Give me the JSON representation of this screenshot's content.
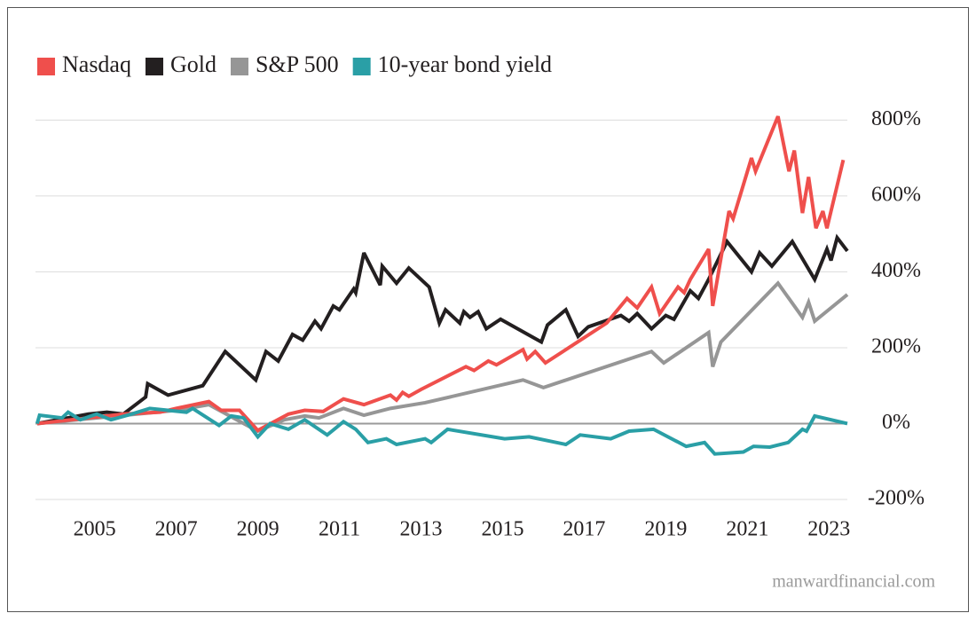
{
  "chart_data": {
    "type": "line",
    "legend": "top-left",
    "grid": true,
    "xlim": [
      2003.55,
      2023.45
    ],
    "xticks": [
      2005,
      2007,
      2009,
      2011,
      2013,
      2015,
      2017,
      2019,
      2021,
      2023
    ],
    "ylim": [
      -200,
      850
    ],
    "yticks": [
      {
        "value": -200,
        "label": "-200%"
      },
      {
        "value": 0,
        "label": "0%"
      },
      {
        "value": 200,
        "label": "200%"
      },
      {
        "value": 400,
        "label": "400%"
      },
      {
        "value": 600,
        "label": "600%"
      },
      {
        "value": 800,
        "label": "800%"
      }
    ],
    "source": "manwardfinancial.com",
    "series": [
      {
        "name": "Nasdaq",
        "color": "#ef4f4c",
        "x": [
          2003.59,
          2004.85,
          2005.7,
          2006.6,
          2007.0,
          2007.8,
          2008.1,
          2008.55,
          2009.0,
          2009.75,
          2010.15,
          2010.6,
          2011.1,
          2011.6,
          2012.25,
          2012.4,
          2012.55,
          2012.7,
          2013.0,
          2014.1,
          2014.3,
          2014.65,
          2014.85,
          2015.5,
          2015.6,
          2015.8,
          2016.05,
          2017.55,
          2018.05,
          2018.3,
          2018.65,
          2018.85,
          2019.3,
          2019.45,
          2019.6,
          2020.05,
          2020.15,
          2020.55,
          2020.65,
          2021.1,
          2021.2,
          2021.75,
          2022.02,
          2022.15,
          2022.35,
          2022.5,
          2022.68,
          2022.85,
          2022.95,
          2023.35
        ],
        "values": [
          0,
          15,
          25,
          30,
          40,
          58,
          35,
          35,
          -18,
          25,
          35,
          32,
          65,
          50,
          75,
          62,
          82,
          72,
          90,
          150,
          140,
          165,
          155,
          195,
          170,
          190,
          160,
          265,
          330,
          305,
          360,
          290,
          360,
          345,
          380,
          460,
          310,
          560,
          540,
          700,
          665,
          810,
          665,
          720,
          555,
          650,
          515,
          560,
          515,
          695
        ]
      },
      {
        "name": "Gold",
        "color": "#231f20",
        "x": [
          2003.59,
          2004.85,
          2005.3,
          2005.7,
          2006.25,
          2006.3,
          2006.8,
          2007.65,
          2008.2,
          2008.95,
          2009.2,
          2009.5,
          2009.85,
          2010.1,
          2010.4,
          2010.55,
          2010.85,
          2011.0,
          2011.35,
          2011.4,
          2011.6,
          2012.0,
          2012.05,
          2012.4,
          2012.7,
          2013.2,
          2013.45,
          2013.6,
          2013.95,
          2014.05,
          2014.2,
          2014.4,
          2014.6,
          2014.95,
          2015.95,
          2016.1,
          2016.55,
          2016.85,
          2017.1,
          2017.9,
          2018.1,
          2018.3,
          2018.65,
          2019.0,
          2019.2,
          2019.6,
          2019.8,
          2020.05,
          2020.5,
          2021.1,
          2021.3,
          2021.6,
          2022.1,
          2022.65,
          2022.95,
          2023.05,
          2023.2,
          2023.45
        ],
        "values": [
          0,
          25,
          30,
          25,
          70,
          105,
          75,
          100,
          190,
          115,
          190,
          165,
          235,
          220,
          270,
          250,
          310,
          300,
          355,
          345,
          450,
          365,
          415,
          370,
          410,
          360,
          265,
          300,
          265,
          295,
          280,
          295,
          250,
          275,
          215,
          260,
          300,
          230,
          255,
          285,
          270,
          290,
          250,
          285,
          275,
          350,
          330,
          380,
          480,
          400,
          450,
          415,
          480,
          380,
          460,
          430,
          490,
          455
        ]
      },
      {
        "name": "S&P 500",
        "color": "#969696",
        "x": [
          2003.59,
          2007.0,
          2007.8,
          2009.0,
          2009.65,
          2010.15,
          2010.5,
          2011.1,
          2011.6,
          2012.25,
          2013.1,
          2015.5,
          2016.0,
          2018.65,
          2018.95,
          2020.05,
          2020.15,
          2020.35,
          2021.75,
          2022.35,
          2022.5,
          2022.65,
          2023.45
        ],
        "values": [
          0,
          35,
          50,
          -20,
          10,
          20,
          15,
          40,
          22,
          40,
          55,
          115,
          95,
          190,
          160,
          240,
          150,
          215,
          370,
          280,
          320,
          270,
          340
        ]
      },
      {
        "name": "10-year bond yield",
        "color": "#2a9fa6",
        "x": [
          2003.59,
          2003.65,
          2004.2,
          2004.35,
          2004.65,
          2005.05,
          2005.4,
          2005.9,
          2006.35,
          2007.25,
          2007.4,
          2008.05,
          2008.35,
          2008.65,
          2009.0,
          2009.3,
          2009.75,
          2010.15,
          2010.7,
          2011.1,
          2011.4,
          2011.7,
          2012.15,
          2012.4,
          2013.1,
          2013.25,
          2013.65,
          2015.05,
          2015.65,
          2016.55,
          2016.9,
          2017.65,
          2018.1,
          2018.7,
          2019.5,
          2019.95,
          2020.2,
          2020.9,
          2021.15,
          2021.55,
          2022.0,
          2022.35,
          2022.45,
          2022.65,
          2023.45
        ],
        "values": [
          0,
          22,
          15,
          30,
          10,
          25,
          10,
          25,
          40,
          30,
          40,
          -5,
          20,
          15,
          -35,
          0,
          -15,
          10,
          -30,
          5,
          -15,
          -50,
          -40,
          -55,
          -40,
          -50,
          -15,
          -40,
          -35,
          -55,
          -30,
          -40,
          -20,
          -15,
          -60,
          -50,
          -80,
          -75,
          -60,
          -62,
          -50,
          -15,
          -20,
          20,
          0
        ]
      }
    ]
  }
}
